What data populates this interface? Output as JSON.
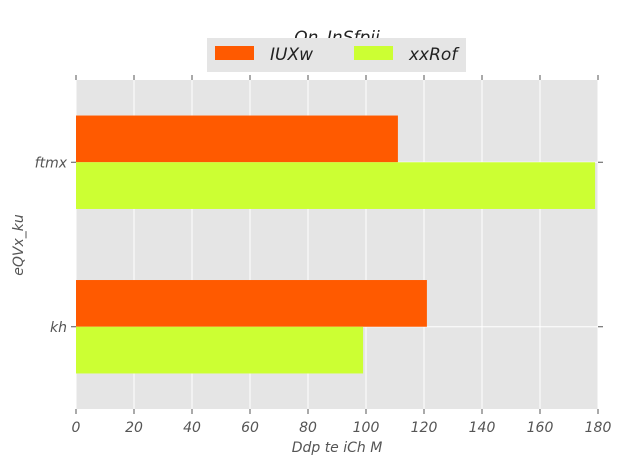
{
  "chart_data": {
    "type": "bar",
    "orientation": "horizontal",
    "title": "Qn_InSfpij",
    "xlabel": "Ddp te iCh M",
    "ylabel": "eQVx_ku",
    "categories": [
      "ftmx",
      "kh"
    ],
    "series": [
      {
        "name": "IUXw",
        "color": "#ff5a00",
        "values": [
          111,
          121
        ]
      },
      {
        "name": "xxRof",
        "color": "#ccff33",
        "values": [
          179,
          99
        ]
      }
    ],
    "xlim": [
      0,
      180
    ],
    "xticks": [
      "0",
      "20",
      "40",
      "60",
      "80",
      "100",
      "120",
      "140",
      "160",
      "180"
    ],
    "grid": true,
    "legend_position": "top-center",
    "background": "#e5e5e5"
  }
}
